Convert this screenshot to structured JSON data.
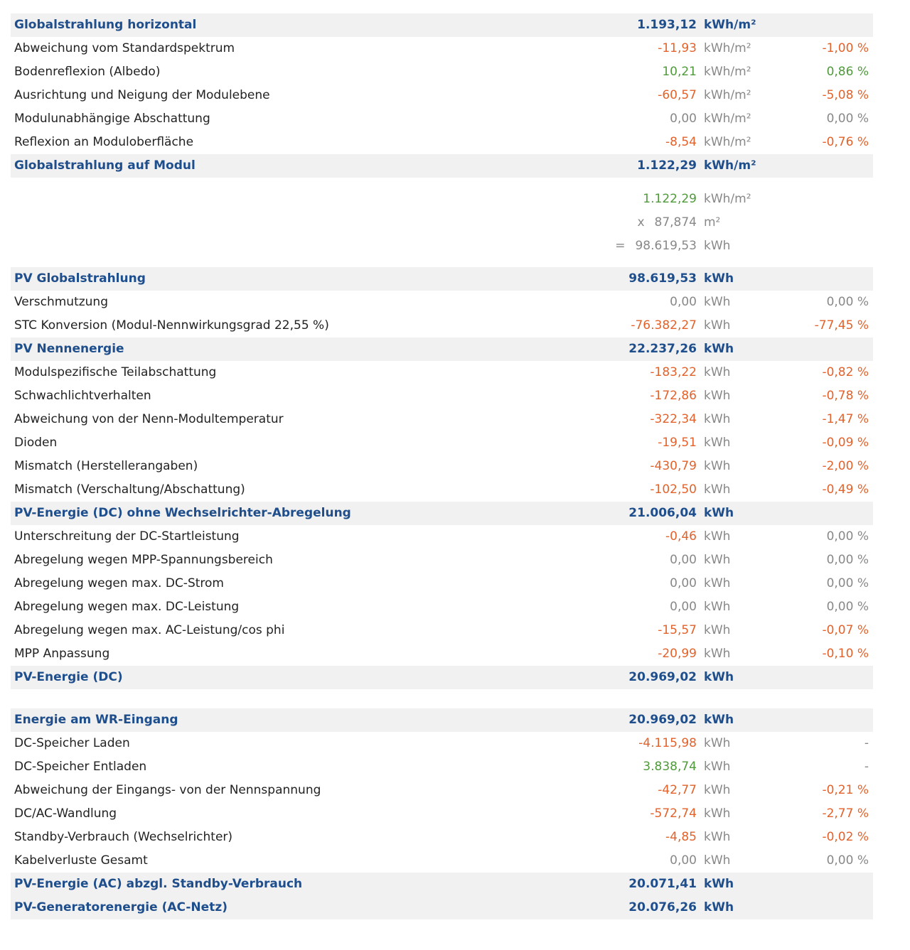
{
  "sections": [
    {
      "rows": [
        {
          "label": "Globalstrahlung horizontal",
          "value": "1.193,12",
          "unit": "kWh/m²",
          "bold": true
        },
        {
          "label": "Abweichung vom Standardspektrum",
          "value": "-11,93",
          "unit": "kWh/m²",
          "percent": "-1,00 %",
          "color": "#e2622b"
        },
        {
          "label": "Bodenreflexion (Albedo)",
          "value": "10,21",
          "unit": "kWh/m²",
          "percent": "0,86 %",
          "color": "#4f9a3a"
        },
        {
          "label": "Ausrichtung und Neigung der Modulebene",
          "value": "-60,57",
          "unit": "kWh/m²",
          "percent": "-5,08 %",
          "color": "#e2622b"
        },
        {
          "label": "Modulunabhängige Abschattung",
          "value": "0,00",
          "unit": "kWh/m²",
          "percent": "0,00 %",
          "color": "#888888"
        },
        {
          "label": "Reflexion an Moduloberfläche",
          "value": "-8,54",
          "unit": "kWh/m²",
          "percent": "-0,76 %",
          "color": "#e2622b"
        },
        {
          "label": "Globalstrahlung auf Modul",
          "value": "1.122,29",
          "unit": "kWh/m²",
          "bold": true
        }
      ]
    },
    {
      "rows": [
        {
          "value": "1.122,29",
          "unit": "kWh/m²",
          "color": "#4f9a3a"
        },
        {
          "operator": "x",
          "value": "87,874",
          "unit": "m²",
          "color": "#888888"
        },
        {
          "operator": "=",
          "value": "98.619,53",
          "unit": "kWh",
          "color": "#888888"
        }
      ]
    },
    {
      "rows": [
        {
          "label": "PV Globalstrahlung",
          "value": "98.619,53",
          "unit": "kWh",
          "bold": true
        },
        {
          "label": "Verschmutzung",
          "value": "0,00",
          "unit": "kWh",
          "percent": "0,00 %",
          "color": "#888888"
        },
        {
          "label": "STC Konversion (Modul-Nennwirkungsgrad 22,55 %)",
          "value": "-76.382,27",
          "unit": "kWh",
          "percent": "-77,45 %",
          "color": "#e2622b"
        },
        {
          "label": "PV Nennenergie",
          "value": "22.237,26",
          "unit": "kWh",
          "bold": true
        },
        {
          "label": "Modulspezifische Teilabschattung",
          "value": "-183,22",
          "unit": "kWh",
          "percent": "-0,82 %",
          "color": "#e2622b"
        },
        {
          "label": "Schwachlichtverhalten",
          "value": "-172,86",
          "unit": "kWh",
          "percent": "-0,78 %",
          "color": "#e2622b"
        },
        {
          "label": "Abweichung von der Nenn-Modultemperatur",
          "value": "-322,34",
          "unit": "kWh",
          "percent": "-1,47 %",
          "color": "#e2622b"
        },
        {
          "label": "Dioden",
          "value": "-19,51",
          "unit": "kWh",
          "percent": "-0,09 %",
          "color": "#e2622b"
        },
        {
          "label": "Mismatch (Herstellerangaben)",
          "value": "-430,79",
          "unit": "kWh",
          "percent": "-2,00 %",
          "color": "#e2622b"
        },
        {
          "label": "Mismatch (Verschaltung/Abschattung)",
          "value": "-102,50",
          "unit": "kWh",
          "percent": "-0,49 %",
          "color": "#e2622b"
        },
        {
          "label": "PV-Energie (DC) ohne Wechselrichter-Abregelung",
          "value": "21.006,04",
          "unit": "kWh",
          "bold": true
        },
        {
          "label": "Unterschreitung der DC-Startleistung",
          "value": "-0,46",
          "unit": "kWh",
          "percent": "0,00 %",
          "color": "#e2622b",
          "percent_color": "#888888"
        },
        {
          "label": "Abregelung wegen MPP-Spannungsbereich",
          "value": "0,00",
          "unit": "kWh",
          "percent": "0,00 %",
          "color": "#888888"
        },
        {
          "label": "Abregelung wegen max. DC-Strom",
          "value": "0,00",
          "unit": "kWh",
          "percent": "0,00 %",
          "color": "#888888"
        },
        {
          "label": "Abregelung wegen max. DC-Leistung",
          "value": "0,00",
          "unit": "kWh",
          "percent": "0,00 %",
          "color": "#888888"
        },
        {
          "label": "Abregelung wegen max. AC-Leistung/cos phi",
          "value": "-15,57",
          "unit": "kWh",
          "percent": "-0,07 %",
          "color": "#e2622b"
        },
        {
          "label": "MPP Anpassung",
          "value": "-20,99",
          "unit": "kWh",
          "percent": "-0,10 %",
          "color": "#e2622b"
        },
        {
          "label": "PV-Energie (DC)",
          "value": "20.969,02",
          "unit": "kWh",
          "bold": true
        }
      ]
    },
    {
      "rows": [
        {
          "label": "Energie am WR-Eingang",
          "value": "20.969,02",
          "unit": "kWh",
          "bold": true
        },
        {
          "label": "DC-Speicher Laden",
          "value": "-4.115,98",
          "unit": "kWh",
          "percent": "-",
          "color": "#e2622b",
          "percent_color": "#888888"
        },
        {
          "label": "DC-Speicher Entladen",
          "value": "3.838,74",
          "unit": "kWh",
          "percent": "-",
          "color": "#4f9a3a",
          "percent_color": "#888888"
        },
        {
          "label": "Abweichung der Eingangs- von der Nennspannung",
          "value": "-42,77",
          "unit": "kWh",
          "percent": "-0,21 %",
          "color": "#e2622b"
        },
        {
          "label": "DC/AC-Wandlung",
          "value": "-572,74",
          "unit": "kWh",
          "percent": "-2,77 %",
          "color": "#e2622b"
        },
        {
          "label": "Standby-Verbrauch (Wechselrichter)",
          "value": "-4,85",
          "unit": "kWh",
          "percent": "-0,02 %",
          "color": "#e2622b"
        },
        {
          "label": "Kabelverluste Gesamt",
          "value": "0,00",
          "unit": "kWh",
          "percent": "0,00 %",
          "color": "#888888"
        },
        {
          "label": "PV-Energie (AC) abzgl. Standby-Verbrauch",
          "value": "20.071,41",
          "unit": "kWh",
          "bold": true
        },
        {
          "label": "PV-Generatorenergie (AC-Netz)",
          "value": "20.076,26",
          "unit": "kWh",
          "bold": true
        }
      ]
    }
  ]
}
